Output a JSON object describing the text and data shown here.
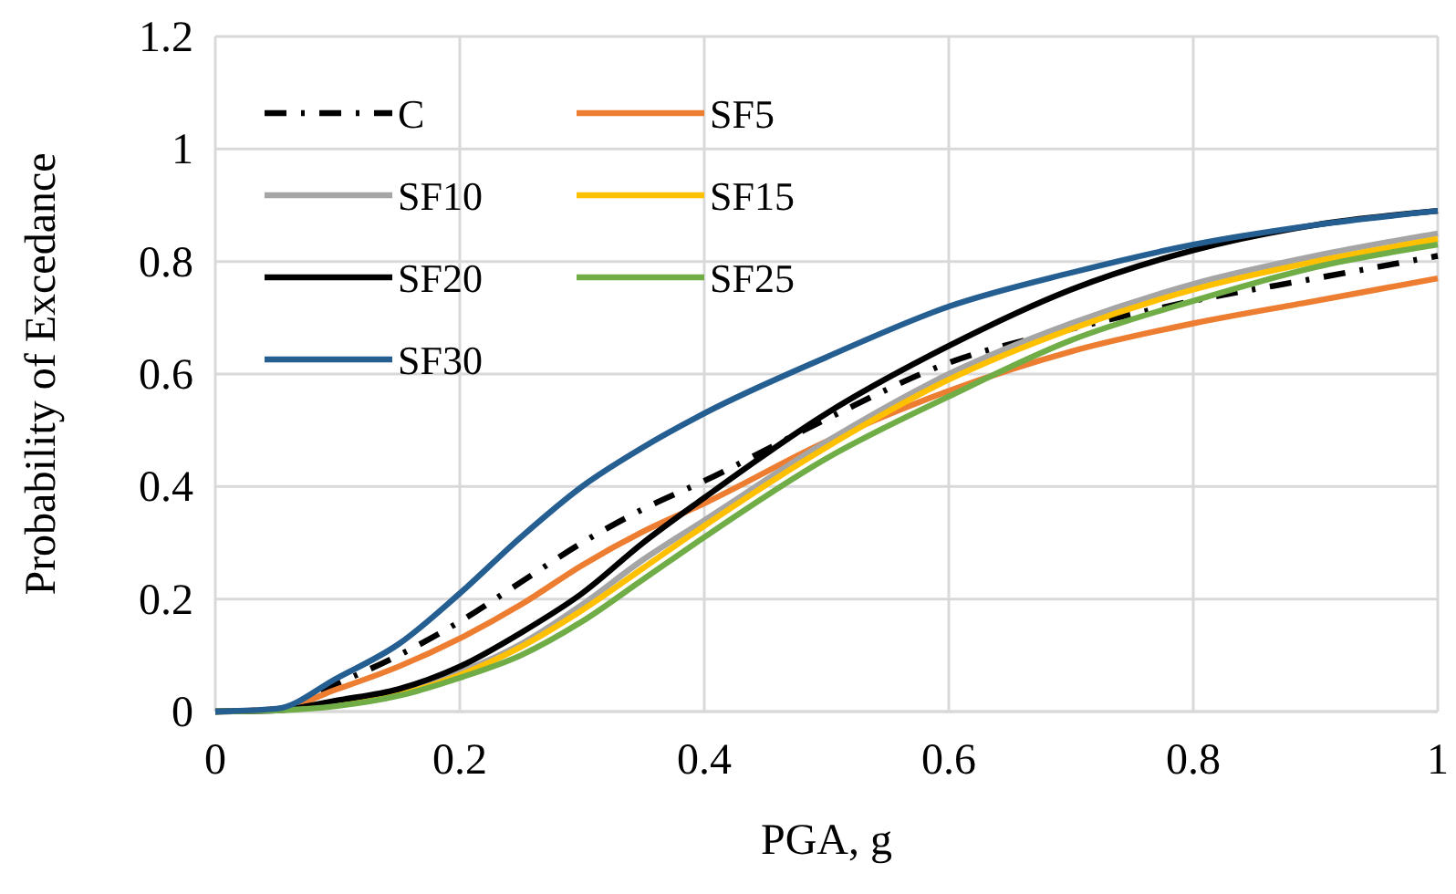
{
  "chart_data": {
    "type": "line",
    "xlabel": "PGA, g",
    "ylabel": "Probability of Excedance",
    "x": [
      0,
      0.05,
      0.1,
      0.15,
      0.2,
      0.25,
      0.3,
      0.35,
      0.4,
      0.5,
      0.6,
      0.7,
      0.8,
      0.9,
      1
    ],
    "xlim": [
      0,
      1
    ],
    "xticks": [
      0,
      0.2,
      0.4,
      0.6,
      0.8,
      1
    ],
    "ylim": [
      0,
      1.2
    ],
    "yticks": [
      0,
      0.2,
      0.4,
      0.6,
      0.8,
      1,
      1.2
    ],
    "grid": true,
    "legend": "top left",
    "series": [
      {
        "name": "C",
        "color": "#000000",
        "line_style": "dashdot",
        "values": [
          0,
          0.004,
          0.05,
          0.1,
          0.16,
          0.23,
          0.3,
          0.36,
          0.41,
          0.52,
          0.62,
          0.68,
          0.73,
          0.77,
          0.81
        ]
      },
      {
        "name": "SF5",
        "color": "#ed7d31",
        "line_style": "solid",
        "values": [
          0,
          0.004,
          0.04,
          0.08,
          0.13,
          0.19,
          0.26,
          0.32,
          0.37,
          0.48,
          0.57,
          0.64,
          0.69,
          0.73,
          0.77
        ]
      },
      {
        "name": "SF10",
        "color": "#a5a5a5",
        "line_style": "solid",
        "values": [
          0,
          0.002,
          0.015,
          0.035,
          0.07,
          0.12,
          0.19,
          0.27,
          0.34,
          0.48,
          0.6,
          0.69,
          0.76,
          0.81,
          0.85
        ]
      },
      {
        "name": "SF15",
        "color": "#ffc000",
        "line_style": "solid",
        "values": [
          null,
          null,
          0.013,
          0.03,
          0.065,
          0.115,
          0.18,
          0.255,
          0.33,
          0.47,
          0.59,
          0.68,
          0.75,
          0.8,
          0.84
        ]
      },
      {
        "name": "SF20",
        "color": "#000000",
        "line_style": "solid",
        "values": [
          0,
          0.002,
          0.02,
          0.04,
          0.08,
          0.14,
          0.21,
          0.3,
          0.38,
          0.53,
          0.65,
          0.75,
          0.82,
          0.865,
          0.89
        ]
      },
      {
        "name": "SF25",
        "color": "#70ad47",
        "line_style": "solid",
        "values": [
          0,
          0.002,
          0.01,
          0.028,
          0.06,
          0.1,
          0.16,
          0.235,
          0.31,
          0.45,
          0.56,
          0.66,
          0.73,
          0.79,
          0.83
        ]
      },
      {
        "name": "SF30",
        "color": "#255e91",
        "line_style": "solid",
        "values": [
          0,
          0.005,
          0.06,
          0.12,
          0.21,
          0.31,
          0.4,
          0.47,
          0.53,
          0.63,
          0.72,
          0.78,
          0.83,
          0.865,
          0.89
        ]
      }
    ]
  }
}
